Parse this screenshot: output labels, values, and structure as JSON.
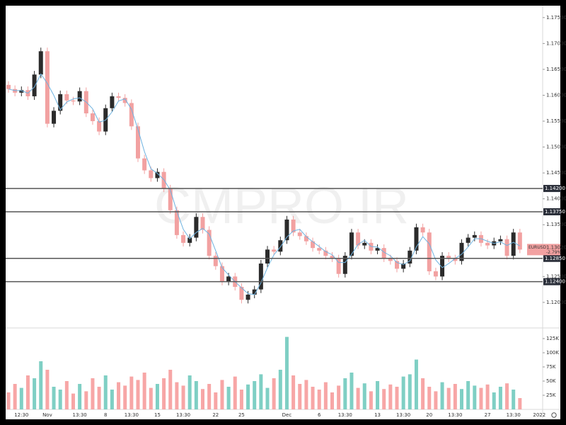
{
  "chart_data": {
    "type": "candlestick",
    "symbol": "EURUSD",
    "last_price": {
      "value": 1.1302,
      "label": "1.13020"
    },
    "change": "-2.79%",
    "watermark": "CMPRO.IR",
    "up_color": "#2b2b2b",
    "down_color": "#f2a1a1",
    "categories": [
      null,
      null,
      "12:30",
      null,
      null,
      null,
      "Nov",
      null,
      null,
      null,
      null,
      "13:30",
      null,
      null,
      null,
      "8",
      null,
      null,
      null,
      "13:30",
      null,
      null,
      null,
      "15",
      null,
      null,
      null,
      "13:30",
      null,
      null,
      null,
      null,
      "22",
      null,
      null,
      null,
      "25",
      null,
      null,
      null,
      null,
      null,
      null,
      "Dec",
      null,
      null,
      null,
      null,
      "6",
      null,
      null,
      null,
      "13:30",
      null,
      null,
      null,
      null,
      "13",
      null,
      null,
      null,
      "13:30",
      null,
      null,
      null,
      "20",
      null,
      null,
      null,
      "13:30",
      null,
      null,
      null,
      null,
      "27",
      null,
      null,
      null,
      "13:30",
      null,
      null,
      null,
      "2022"
    ],
    "open": [
      1.162,
      1.1612,
      1.1605,
      1.161,
      1.1598,
      1.164,
      1.1685,
      1.1545,
      1.157,
      1.1602,
      1.159,
      1.1588,
      1.1608,
      1.1565,
      1.155,
      1.153,
      1.1575,
      1.1598,
      1.1595,
      1.1585,
      1.154,
      1.1478,
      1.1455,
      1.144,
      1.1452,
      1.142,
      1.1378,
      1.133,
      1.1315,
      1.1325,
      1.1365,
      1.134,
      1.129,
      1.127,
      1.124,
      1.125,
      1.123,
      1.1205,
      1.1215,
      1.1225,
      1.1275,
      1.1302,
      1.1298,
      1.132,
      1.136,
      1.1335,
      1.1328,
      1.1318,
      1.1305,
      1.13,
      1.129,
      1.1285,
      1.1255,
      1.129,
      1.1335,
      1.131,
      1.1315,
      1.13,
      1.1305,
      1.1285,
      1.128,
      1.1265,
      1.1275,
      1.13,
      1.1345,
      1.1335,
      1.126,
      1.125,
      1.129,
      1.1285,
      1.128,
      1.1315,
      1.1325,
      1.133,
      1.1315,
      1.131,
      1.1318,
      1.1322,
      1.129,
      1.1335,
      null,
      null,
      null
    ],
    "high": [
      1.1627,
      1.1619,
      1.1617,
      1.1617,
      1.1647,
      1.1692,
      1.1692,
      1.1577,
      1.1609,
      1.1609,
      1.1597,
      1.1615,
      1.1615,
      1.1572,
      1.1557,
      1.1582,
      1.1605,
      1.1605,
      1.1602,
      1.1592,
      1.1547,
      1.1485,
      1.1462,
      1.1459,
      1.1459,
      1.1427,
      1.1385,
      1.1337,
      1.1332,
      1.1372,
      1.1372,
      1.1347,
      1.1297,
      1.1277,
      1.1257,
      1.1257,
      1.1237,
      1.1222,
      1.1232,
      1.1282,
      1.1309,
      1.1309,
      1.1327,
      1.1367,
      1.1367,
      1.1342,
      1.1335,
      1.1325,
      1.1312,
      1.1307,
      1.1297,
      1.1292,
      1.1297,
      1.1342,
      1.1342,
      1.1322,
      1.1322,
      1.1312,
      1.1312,
      1.1292,
      1.1287,
      1.1282,
      1.1307,
      1.1352,
      1.1352,
      1.1342,
      1.1267,
      1.1297,
      1.1297,
      1.1292,
      1.1322,
      1.1332,
      1.1337,
      1.1337,
      1.1322,
      1.1325,
      1.1329,
      1.1329,
      1.1342,
      1.1342,
      null,
      null,
      null
    ],
    "low": [
      1.1605,
      1.1598,
      1.1598,
      1.1591,
      1.1591,
      1.1633,
      1.1538,
      1.1538,
      1.1563,
      1.1583,
      1.1581,
      1.1581,
      1.1558,
      1.1543,
      1.1523,
      1.1523,
      1.1568,
      1.1588,
      1.1578,
      1.1533,
      1.1471,
      1.1448,
      1.1433,
      1.1433,
      1.1413,
      1.1371,
      1.1323,
      1.1308,
      1.1308,
      1.1318,
      1.1333,
      1.1283,
      1.1263,
      1.1233,
      1.1233,
      1.1223,
      1.1198,
      1.1198,
      1.1208,
      1.1218,
      1.1268,
      1.1291,
      1.1291,
      1.1313,
      1.1328,
      1.1321,
      1.1311,
      1.1298,
      1.1293,
      1.1283,
      1.1278,
      1.1248,
      1.1248,
      1.1283,
      1.1303,
      1.1303,
      1.1293,
      1.1293,
      1.1278,
      1.1273,
      1.1258,
      1.1258,
      1.1268,
      1.1293,
      1.1328,
      1.1253,
      1.1243,
      1.1243,
      1.1278,
      1.1273,
      1.1273,
      1.1308,
      1.1318,
      1.1308,
      1.1303,
      1.1303,
      1.1311,
      1.1283,
      1.1283,
      1.1295,
      null,
      null,
      null
    ],
    "close": [
      1.1612,
      1.1605,
      1.161,
      1.1598,
      1.164,
      1.1685,
      1.1545,
      1.157,
      1.1602,
      1.159,
      1.1588,
      1.1608,
      1.1565,
      1.155,
      1.153,
      1.1575,
      1.1598,
      1.1595,
      1.1585,
      1.154,
      1.1478,
      1.1455,
      1.144,
      1.1452,
      1.142,
      1.1378,
      1.133,
      1.1315,
      1.1325,
      1.1365,
      1.134,
      1.129,
      1.127,
      1.124,
      1.125,
      1.123,
      1.1205,
      1.1215,
      1.1225,
      1.1275,
      1.1302,
      1.1298,
      1.132,
      1.136,
      1.1335,
      1.1328,
      1.1318,
      1.1305,
      1.13,
      1.129,
      1.1285,
      1.1255,
      1.129,
      1.1335,
      1.131,
      1.1315,
      1.13,
      1.1305,
      1.1285,
      1.128,
      1.1265,
      1.1275,
      1.13,
      1.1345,
      1.1335,
      1.126,
      1.125,
      1.129,
      1.1285,
      1.128,
      1.1315,
      1.1325,
      1.133,
      1.1315,
      1.131,
      1.1318,
      1.1322,
      1.129,
      1.1335,
      1.1302,
      null,
      null,
      null
    ],
    "ma": {
      "color": "#6fb3e0",
      "values": [
        1.1612,
        1.1609,
        1.1609,
        1.1604,
        1.1616,
        1.1641,
        1.1623,
        1.16,
        1.1572,
        1.1587,
        1.1593,
        1.1595,
        1.1587,
        1.1574,
        1.1548,
        1.1552,
        1.1568,
        1.1589,
        1.1593,
        1.1573,
        1.1534,
        1.1491,
        1.1458,
        1.1449,
        1.1437,
        1.1417,
        1.1376,
        1.1341,
        1.1323,
        1.1335,
        1.1343,
        1.1332,
        1.13,
        1.1267,
        1.1253,
        1.124,
        1.1228,
        1.1217,
        1.1215,
        1.1238,
        1.1267,
        1.1292,
        1.1307,
        1.1326,
        1.1338,
        1.1341,
        1.1327,
        1.1317,
        1.1308,
        1.1298,
        1.1292,
        1.1277,
        1.1277,
        1.1293,
        1.1312,
        1.132,
        1.1308,
        1.1307,
        1.1297,
        1.129,
        1.1277,
        1.1273,
        1.128,
        1.1307,
        1.1327,
        1.1313,
        1.1282,
        1.1267,
        1.1275,
        1.1285,
        1.1293,
        1.1307,
        1.1323,
        1.1323,
        1.1318,
        1.1314,
        1.1317,
        1.131,
        1.1316,
        1.1309,
        null,
        null,
        null
      ]
    },
    "ylim": [
      1.1152,
      1.1773
    ],
    "yticks": [
      {
        "value": 1.12,
        "label": "1.12000"
      },
      {
        "value": 1.125,
        "label": "1.12500"
      },
      {
        "value": 1.135,
        "label": "1.13500"
      },
      {
        "value": 1.14,
        "label": "1.14000"
      },
      {
        "value": 1.145,
        "label": "1.14500"
      },
      {
        "value": 1.15,
        "label": "1.15000"
      },
      {
        "value": 1.155,
        "label": "1.15500"
      },
      {
        "value": 1.16,
        "label": "1.16000"
      },
      {
        "value": 1.165,
        "label": "1.16500"
      },
      {
        "value": 1.17,
        "label": "1.17000"
      },
      {
        "value": 1.175,
        "label": "1.17500"
      }
    ],
    "levels": [
      {
        "value": 1.142,
        "label": "1.14200"
      },
      {
        "value": 1.1375,
        "label": "1.13750"
      },
      {
        "value": 1.1285,
        "label": "1.12850"
      },
      {
        "value": 1.124,
        "label": "1.12400"
      }
    ],
    "volume": {
      "up_color": "#7fcfc4",
      "down_color": "#f7a6a6",
      "values": [
        30000,
        45000,
        38000,
        60000,
        55000,
        85000,
        70000,
        40000,
        35000,
        50000,
        28000,
        45000,
        32000,
        55000,
        40000,
        60000,
        35000,
        48000,
        42000,
        58000,
        52000,
        65000,
        38000,
        45000,
        55000,
        70000,
        48000,
        42000,
        60000,
        50000,
        36000,
        45000,
        30000,
        52000,
        40000,
        58000,
        35000,
        44000,
        50000,
        62000,
        38000,
        55000,
        70000,
        128000,
        60000,
        45000,
        52000,
        40000,
        35000,
        48000,
        30000,
        42000,
        55000,
        65000,
        38000,
        46000,
        32000,
        50000,
        36000,
        44000,
        40000,
        58000,
        62000,
        88000,
        55000,
        40000,
        32000,
        48000,
        38000,
        45000,
        36000,
        50000,
        42000,
        38000,
        44000,
        30000,
        40000,
        46000,
        35000,
        20000,
        null,
        null,
        null
      ],
      "ylim": [
        0,
        142500
      ],
      "yticks": [
        {
          "value": 25000,
          "label": "25K"
        },
        {
          "value": 50000,
          "label": "50K"
        },
        {
          "value": 75000,
          "label": "75K"
        },
        {
          "value": 100000,
          "label": "100K"
        },
        {
          "value": 125000,
          "label": "125K"
        }
      ]
    }
  }
}
